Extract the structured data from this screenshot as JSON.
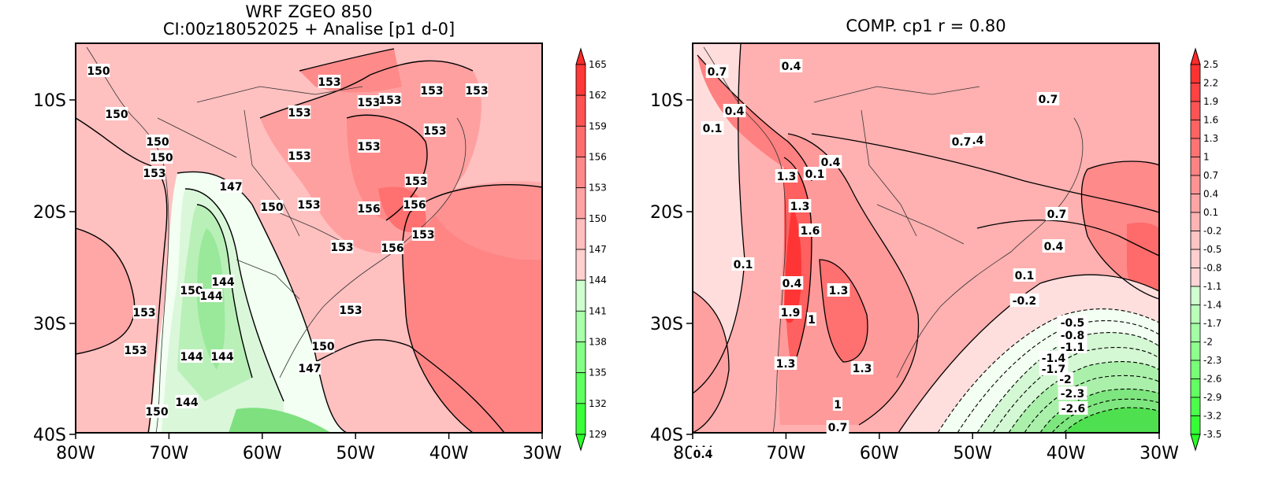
{
  "left_panel": {
    "title_line1": "WRF ZGEO 850",
    "title_line2": "CI:00z18052025 + Analise  [p1 d-0]",
    "lat_ticks": [
      "10S",
      "20S",
      "30S",
      "40S"
    ],
    "lon_ticks": [
      "80W",
      "70W",
      "60W",
      "50W",
      "40W",
      "30W"
    ],
    "colorbar_ticks": [
      "165",
      "162",
      "159",
      "156",
      "153",
      "150",
      "147",
      "144",
      "141",
      "138",
      "135",
      "132",
      "129"
    ],
    "contour_labels": [
      "150",
      "150",
      "153",
      "153",
      "153",
      "153",
      "153",
      "150",
      "150",
      "153",
      "153",
      "153",
      "147",
      "153",
      "153",
      "150",
      "153",
      "156",
      "156",
      "153",
      "153",
      "156",
      "153",
      "150",
      "144",
      "144",
      "153",
      "144",
      "144",
      "153",
      "153",
      "150",
      "147",
      "153",
      "150",
      "144"
    ],
    "colors": {
      "high": "#ff2a2a",
      "mid": "#ffcccc",
      "low": "#2aff2a"
    }
  },
  "right_panel": {
    "title": "COMP. cp1  r =  0.80",
    "lat_ticks": [
      "10S",
      "20S",
      "30S",
      "40S"
    ],
    "lon_ticks": [
      "80W",
      "70W",
      "60W",
      "50W",
      "40W",
      "30W"
    ],
    "colorbar_ticks": [
      "2.5",
      "2.2",
      "1.9",
      "1.6",
      "1.3",
      "1",
      "0.7",
      "0.4",
      "0.1",
      "-0.2",
      "-0.5",
      "-0.8",
      "-1.1",
      "-1.4",
      "-1.7",
      "-2",
      "-2.3",
      "-2.6",
      "-2.9",
      "-3.2",
      "-3.5"
    ],
    "contour_labels": [
      "0.7",
      "0.4",
      "1.4",
      "0.4",
      "0.1",
      "0.7",
      "0.7",
      "0.4",
      "1.3",
      "0.1",
      "1.3",
      "0.7",
      "0.1",
      "1.6",
      "0.4",
      "1.3",
      "0.4",
      "0.1",
      "-0.2",
      "1.9",
      "1",
      "-0.5",
      "-0.8",
      "-1.1",
      "-1.4",
      "-1.7",
      "1.3",
      "-2",
      "-2.3",
      "-2.6",
      "0.4",
      "1",
      "0.7",
      "1.3"
    ],
    "colors": {
      "high": "#ff2a2a",
      "mid": "#ffcccc",
      "low": "#2aff2a"
    }
  }
}
